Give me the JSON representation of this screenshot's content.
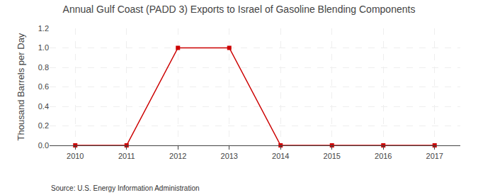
{
  "chart_data": {
    "type": "line",
    "title": "Annual Gulf Coast (PADD 3) Exports to Israel of Gasoline Blending Components",
    "y_label": "Thousand Barrels per Day",
    "annotations": [
      "Source: U.S. Energy Information Administration"
    ],
    "x": [
      2010,
      2011,
      2012,
      2013,
      2014,
      2015,
      2016,
      2017
    ],
    "values": [
      0,
      0,
      1.0,
      1.0,
      0,
      0,
      0,
      0
    ],
    "color": "#cc0000",
    "marker": "square",
    "xlim": [
      2009.5,
      2017.5
    ],
    "xticks": [
      2010,
      2011,
      2012,
      2013,
      2014,
      2015,
      2016,
      2017
    ],
    "ylim": [
      0,
      1.2
    ],
    "yticks": [
      {
        "value": 0,
        "label": "0.0"
      },
      0.2,
      0.4,
      0.6,
      0.8,
      {
        "value": 1,
        "label": "1.0"
      },
      1.2
    ],
    "grid": true
  }
}
